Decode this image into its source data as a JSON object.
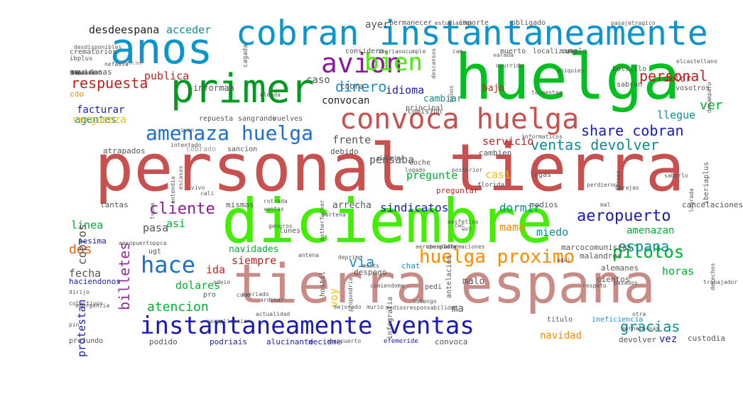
{
  "words": [
    {
      "text": "personal tierra",
      "color": "#c8504f"
    },
    {
      "text": "diciembre",
      "color": "#44ee00"
    },
    {
      "text": "tierra espana",
      "color": "#c88b86"
    },
    {
      "text": "huelga",
      "color": "#00c020"
    },
    {
      "text": "anos",
      "color": "#0a95cf"
    },
    {
      "text": "cobran instantaneamente",
      "color": "#0a95cf"
    },
    {
      "text": "primer",
      "color": "#009a20"
    },
    {
      "text": "amenaza huelga",
      "color": "#1a6fd0"
    },
    {
      "text": "convoca huelga",
      "color": "#c8504f"
    },
    {
      "text": "instantaneamente ventas",
      "color": "#1a1ab8"
    },
    {
      "text": "huelga proximo",
      "color": "#ff8a00"
    },
    {
      "text": "avion",
      "color": "#8b1a9a"
    },
    {
      "text": "bien",
      "color": "#44ee00"
    },
    {
      "text": "hace",
      "color": "#1a6fd0"
    },
    {
      "text": "ventas devolver",
      "color": "#0a8f8f"
    },
    {
      "text": "share cobran",
      "color": "#1a1ab8"
    },
    {
      "text": "aeropuerto",
      "color": "#1a1ab8"
    },
    {
      "text": "pilotos",
      "color": "#00b030"
    },
    {
      "text": "billetes",
      "color": "#9a2aa0"
    },
    {
      "text": "cliente",
      "color": "#8b1a9a"
    },
    {
      "text": "dinero",
      "color": "#1a8fcf"
    },
    {
      "text": "respuesta",
      "color": "#c0201a"
    },
    {
      "text": "personal",
      "color": "#c02020"
    },
    {
      "text": "desdeespana",
      "color": "#222222"
    },
    {
      "text": "acceder",
      "color": "#0a8f8f"
    },
    {
      "text": "publica",
      "color": "#c02020"
    },
    {
      "text": "caso",
      "color": "#555555"
    },
    {
      "text": "idioma",
      "color": "#1a1ab8"
    },
    {
      "text": "convocan",
      "color": "#222222"
    },
    {
      "text": "via",
      "color": "#1a8fcf"
    },
    {
      "text": "espana",
      "color": "#0a8f8f"
    },
    {
      "text": "gracias",
      "color": "#0a8f8f"
    },
    {
      "text": "sindicatos",
      "color": "#1a1ab8"
    },
    {
      "text": "dormir",
      "color": "#0a8f8f"
    },
    {
      "text": "mama",
      "color": "#ff8a00"
    },
    {
      "text": "miedo",
      "color": "#0a8f8f"
    },
    {
      "text": "dos",
      "color": "#ff5a00"
    },
    {
      "text": "fecha",
      "color": "#555555"
    },
    {
      "text": "atencion",
      "color": "#00b030"
    },
    {
      "text": "ver",
      "color": "#00b030"
    },
    {
      "text": "llegue",
      "color": "#0a8f8f"
    },
    {
      "text": "servicio",
      "color": "#c02020"
    },
    {
      "text": "frente",
      "color": "#555555"
    },
    {
      "text": "pensaba",
      "color": "#555555"
    },
    {
      "text": "pregunte",
      "color": "#00b030"
    },
    {
      "text": "casi",
      "color": "#ffbb00"
    },
    {
      "text": "horas",
      "color": "#00b030"
    },
    {
      "text": "ida",
      "color": "#c02020"
    },
    {
      "text": "siempre",
      "color": "#c02020"
    },
    {
      "text": "dolares",
      "color": "#00b030"
    },
    {
      "text": "asi",
      "color": "#00b030"
    },
    {
      "text": "pasa",
      "color": "#555555"
    },
    {
      "text": "linea",
      "color": "#00b030"
    },
    {
      "text": "cobros",
      "color": "#555555"
    },
    {
      "text": "protestan",
      "color": "#1a1ab8"
    },
    {
      "text": "facturar",
      "color": "#1a1ab8"
    },
    {
      "text": "agentes",
      "color": "#0a8f8f"
    },
    {
      "text": "verguenza",
      "color": "#ffbb00"
    },
    {
      "text": "cdo",
      "color": "#ff8a00"
    },
    {
      "text": "navidenas",
      "color": "#555555"
    },
    {
      "text": "informan",
      "color": "#555555"
    },
    {
      "text": "ayer",
      "color": "#555555"
    },
    {
      "text": "ma",
      "color": "#555555"
    },
    {
      "text": "malo",
      "color": "#555555"
    },
    {
      "text": "voy",
      "color": "#ffbb00"
    },
    {
      "text": "vez",
      "color": "#1a1ab8"
    },
    {
      "text": "navidad",
      "color": "#ff8a00"
    },
    {
      "text": "amenazan",
      "color": "#00b030"
    },
    {
      "text": "cambiar",
      "color": "#0a8f8f"
    },
    {
      "text": "dolor",
      "color": "#c02020"
    },
    {
      "text": "bajo",
      "color": "#c02020"
    },
    {
      "text": "navidades",
      "color": "#00b030"
    },
    {
      "text": "cobra",
      "color": "#555555"
    },
    {
      "text": "medios",
      "color": "#555555"
    },
    {
      "text": "cancelaciones",
      "color": "#555555"
    },
    {
      "text": "cambien",
      "color": "#555555"
    },
    {
      "text": "debido",
      "color": "#555555"
    },
    {
      "text": "atrapados",
      "color": "#555555"
    },
    {
      "text": "preguntar",
      "color": "#c02020"
    },
    {
      "text": "tantas",
      "color": "#555555"
    },
    {
      "text": "mismas",
      "color": "#555555"
    },
    {
      "text": "arrecha",
      "color": "#555555"
    },
    {
      "text": "pesima",
      "color": "#1a1ab8"
    },
    {
      "text": "haciendonos",
      "color": "#1a1ab8"
    },
    {
      "text": "alemanes",
      "color": "#555555"
    },
    {
      "text": "chat",
      "color": "#1a8fcf"
    },
    {
      "text": "despego",
      "color": "#555555"
    },
    {
      "text": "marcocomunistas",
      "color": "#555555"
    },
    {
      "text": "malandros",
      "color": "#555555"
    },
    {
      "text": "cientos",
      "color": "#555555"
    },
    {
      "text": "devolver",
      "color": "#555555"
    },
    {
      "text": "custodia",
      "color": "#555555"
    },
    {
      "text": "podido",
      "color": "#555555"
    },
    {
      "text": "podriais",
      "color": "#1a1ab8"
    },
    {
      "text": "alucinante",
      "color": "#1a1ab8"
    },
    {
      "text": "decidme",
      "color": "#1a1ab8"
    },
    {
      "text": "efemeride",
      "color": "#1a1ab8"
    },
    {
      "text": "convoca",
      "color": "#555555"
    },
    {
      "text": "ineficiencia",
      "color": "#1a8fcf"
    },
    {
      "text": "titulo",
      "color": "#555555"
    },
    {
      "text": "logas",
      "color": "#555555"
    },
    {
      "text": "coche",
      "color": "#555555"
    },
    {
      "text": "principal",
      "color": "#555555"
    },
    {
      "text": "comision",
      "color": "#555555"
    },
    {
      "text": "sangrando",
      "color": "#555555"
    },
    {
      "text": "vuelves",
      "color": "#555555"
    },
    {
      "text": "repuesta",
      "color": "#555555"
    },
    {
      "text": "sancion",
      "color": "#555555"
    },
    {
      "text": "cobrado",
      "color": "#999999"
    },
    {
      "text": "bolsillo",
      "color": "#555555"
    },
    {
      "text": "sabran",
      "color": "#555555"
    },
    {
      "text": "vosotros",
      "color": "#555555"
    },
    {
      "text": "importe",
      "color": "#555555"
    },
    {
      "text": "obligado",
      "color": "#555555"
    },
    {
      "text": "permanecer",
      "color": "#555555"
    },
    {
      "text": "considero",
      "color": "#555555"
    },
    {
      "text": "localizar",
      "color": "#555555"
    },
    {
      "text": "muerto",
      "color": "#555555"
    },
    {
      "text": "cumplo",
      "color": "#555555"
    },
    {
      "text": "crematorios",
      "color": "#555555"
    },
    {
      "text": "ibplus",
      "color": "#555555"
    },
    {
      "text": "pedi",
      "color": "#555555"
    },
    {
      "text": "lunes",
      "color": "#555555"
    },
    {
      "text": "ugt",
      "color": "#555555"
    },
    {
      "text": "colectivos",
      "color": "#555555"
    },
    {
      "text": "dirijo",
      "color": "#555555"
    },
    {
      "text": "profundo",
      "color": "#555555"
    },
    {
      "text": "pin",
      "color": "#555555"
    },
    {
      "text": "pro",
      "color": "#555555"
    },
    {
      "text": "hostil",
      "color": "#555555"
    },
    {
      "text": "infografia",
      "color": "#555555"
    },
    {
      "text": "antelacion",
      "color": "#555555"
    },
    {
      "text": "obtengo",
      "color": "#555555"
    },
    {
      "text": "mal",
      "color": "#555555"
    },
    {
      "text": "florida",
      "color": "#555555"
    },
    {
      "text": "iberiaplus",
      "color": "#555555"
    },
    {
      "text": "derechos",
      "color": "#555555"
    },
    {
      "text": "trabajador",
      "color": "#555555"
    },
    {
      "text": "dedicad",
      "color": "#999999"
    },
    {
      "text": "nefasta",
      "color": "#555555"
    },
    {
      "text": "oleada",
      "color": "#555555"
    },
    {
      "text": "cagada",
      "color": "#555555"
    },
    {
      "text": "vivan",
      "color": "#555555"
    },
    {
      "text": "logado",
      "color": "#555555"
    },
    {
      "text": "posterior",
      "color": "#555555"
    },
    {
      "text": "saberlo",
      "color": "#555555"
    },
    {
      "text": "barajas",
      "color": "#555555"
    },
    {
      "text": "nornes",
      "color": "#555555"
    },
    {
      "text": "perdieron",
      "color": "#555555"
    },
    {
      "text": "aqui",
      "color": "#555555"
    },
    {
      "text": "ventas",
      "color": "#555555"
    },
    {
      "text": "portena",
      "color": "#555555"
    },
    {
      "text": "rotrada",
      "color": "#555555"
    },
    {
      "text": "vivo",
      "color": "#555555"
    },
    {
      "text": "cali",
      "color": "#555555"
    },
    {
      "text": "escasos",
      "color": "#555555"
    },
    {
      "text": "tupos",
      "color": "#555555"
    },
    {
      "text": "emergencia",
      "color": "#555555"
    },
    {
      "text": "aeropuertoppca",
      "color": "#555555"
    },
    {
      "text": "antena",
      "color": "#555555"
    },
    {
      "text": "cuuo",
      "color": "#555555"
    },
    {
      "text": "pk0",
      "color": "#555555"
    },
    {
      "text": "pasajetragico",
      "color": "#555555"
    },
    {
      "text": "estudiantes",
      "color": "#555555"
    },
    {
      "text": "iberianocumple",
      "color": "#555555"
    },
    {
      "text": "cam",
      "color": "#555555"
    },
    {
      "text": "elcastellano",
      "color": "#555555"
    },
    {
      "text": "aeropuerto",
      "color": "#555555"
    },
    {
      "text": "deprimo",
      "color": "#555555"
    },
    {
      "text": "ardinar",
      "color": "#555555"
    },
    {
      "text": "actualidad",
      "color": "#555555"
    },
    {
      "text": "murio",
      "color": "#555555"
    },
    {
      "text": "ahiquien",
      "color": "#555555"
    },
    {
      "text": "tormentas",
      "color": "#555555"
    },
    {
      "text": "desamparo",
      "color": "#555555"
    },
    {
      "text": "menos",
      "color": "#555555"
    },
    {
      "text": "descansos",
      "color": "#555555"
    },
    {
      "text": "varada",
      "color": "#555555"
    },
    {
      "text": "ocurrido",
      "color": "#555555"
    },
    {
      "text": "intentado",
      "color": "#555555"
    },
    {
      "text": "pasados",
      "color": "#555555"
    },
    {
      "text": "mediosresponsabilidad",
      "color": "#555555"
    },
    {
      "text": "informaticos",
      "color": "#555555"
    },
    {
      "text": "ellimina",
      "color": "#555555"
    },
    {
      "text": "molts",
      "color": "#555555"
    },
    {
      "text": "comiendome",
      "color": "#555555"
    },
    {
      "text": "propondria",
      "color": "#555555"
    },
    {
      "text": "motherfucker",
      "color": "#555555"
    },
    {
      "text": "generos",
      "color": "#555555"
    },
    {
      "text": "desdisponibles",
      "color": "#555555"
    },
    {
      "text": "lograda",
      "color": "#555555"
    },
    {
      "text": "antendia",
      "color": "#555555"
    },
    {
      "text": "averiado",
      "color": "#555555"
    },
    {
      "text": "odeio",
      "color": "#555555"
    },
    {
      "text": "eaxmplicacion",
      "color": "#555555"
    },
    {
      "text": "mejorado",
      "color": "#555555"
    },
    {
      "text": "respeto",
      "color": "#555555"
    },
    {
      "text": "otra",
      "color": "#555555"
    },
    {
      "text": "aernalnasas",
      "color": "#555555"
    },
    {
      "text": "aeroperplexa",
      "color": "#555555"
    },
    {
      "text": "cheapsafe",
      "color": "#555555"
    },
    {
      "text": "informaciones",
      "color": "#555555"
    },
    {
      "text": "aesfetisa",
      "color": "#555555"
    },
    {
      "text": "cwc",
      "color": "#555555"
    },
    {
      "text": "wvt",
      "color": "#555555"
    },
    {
      "text": "colectivo",
      "color": "#555555"
    },
    {
      "text": "fiaulas",
      "color": "#555555"
    },
    {
      "text": "amenazano",
      "color": "#555555"
    },
    {
      "text": "bw",
      "color": "#555555"
    },
    {
      "text": "caminos",
      "color": "#555555"
    },
    {
      "text": "hzpd",
      "color": "#555555"
    },
    {
      "text": "dh",
      "color": "#555555"
    },
    {
      "text": "pr",
      "color": "#555555"
    },
    {
      "text": "ot",
      "color": "#555555"
    }
  ]
}
